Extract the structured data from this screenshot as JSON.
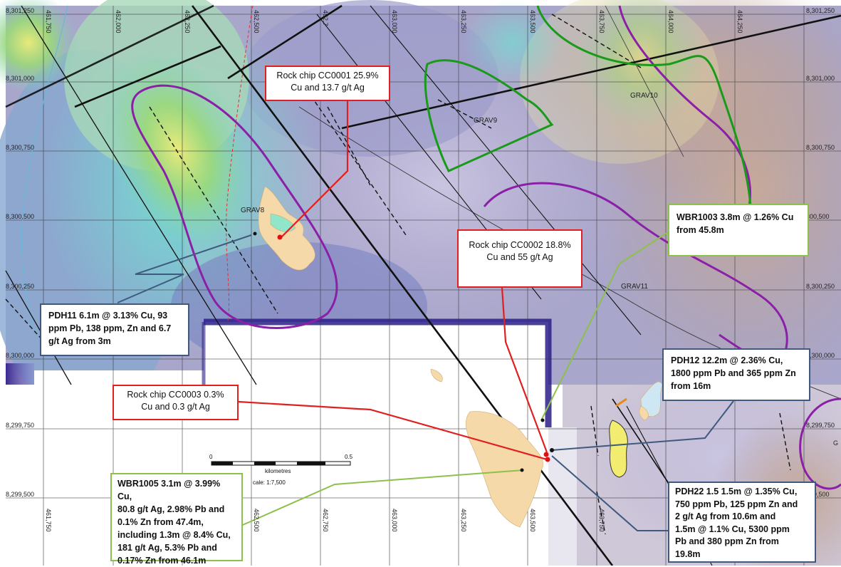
{
  "colors": {
    "background": "#ffffff",
    "grid": "#3a3a3a",
    "fault": "#111111",
    "anomaly_outline": "#8b1fa8",
    "grav_outline": "#1a9a1a",
    "callout_red": "#e02020",
    "callout_blue": "#3f5a7e",
    "callout_green": "#8cc14b",
    "outcrop": "#f6d9a8",
    "sample": "#e01010"
  },
  "grid": {
    "eastings": [
      "461,750",
      "462,000",
      "462,250",
      "462,500",
      "462,750",
      "463,000",
      "463,250",
      "463,500",
      "463,750",
      "464,000",
      "464,250"
    ],
    "northings_left": [
      "8,301,250",
      "8,301,000",
      "8,300,750",
      "8,300,500",
      "8,300,250",
      "8,300,000",
      "8,299,750",
      "8,299,500"
    ],
    "northings_right": [
      "8,301,250",
      "8,301,000",
      "8,300,750",
      "300,500",
      "8,300,250",
      "8,300,000",
      "8,299,750",
      "299,500"
    ],
    "top_eastings_partial": [
      "461,750",
      "462,000",
      "462,250",
      "462,500",
      "462,7",
      "463,000",
      "463,250",
      "463,500",
      "463,750",
      "464,000",
      "464,250"
    ]
  },
  "targets": [
    "GRAV8",
    "GRAV9",
    "GRAV10",
    "GRAV11"
  ],
  "scale_bar": {
    "start": "0",
    "end": "0.5",
    "unit": "kilometres",
    "scale": "cale: 1:7,500"
  },
  "edge_letter": "G",
  "callouts": {
    "cc0001": {
      "lines": [
        "Rock chip CC0001  25.9%",
        "Cu and 13.7 g/t Ag"
      ]
    },
    "cc0002": {
      "lines": [
        "Rock chip CC0002  18.8%",
        "Cu and 55 g/t Ag"
      ]
    },
    "cc0003": {
      "lines": [
        "Rock chip CC0003  0.3%",
        "Cu and 0.3 g/t Ag"
      ]
    },
    "wbr1003": {
      "lines": [
        "WBR1003  3.8m @ 1.26% Cu",
        "from 45.8m"
      ]
    },
    "pdh11": {
      "lines": [
        "PDH11  6.1m @ 3.13% Cu, 93",
        "ppm Pb, 138 ppm, Zn and 6.7",
        "g/t Ag from 3m"
      ]
    },
    "pdh12": {
      "lines": [
        "PDH12  12.2m @ 2.36% Cu,",
        "1800 ppm Pb and 365 ppm Zn",
        "from 16m"
      ]
    },
    "wbr1005": {
      "lines": [
        "WBR1005  3.1m @ 3.99% Cu,",
        "80.8 g/t Ag, 2.98% Pb and",
        "0.1% Zn from 47.4m,",
        "including 1.3m @ 8.4% Cu,",
        "181 g/t Ag, 5.3% Pb and",
        "0.17% Zn from 46.1m"
      ]
    },
    "pdh22": {
      "lines": [
        "PDH22  1.5 1.5m @ 1.35% Cu,",
        "750 ppm Pb, 125 ppm Zn and",
        "2 g/t Ag from 10.6m  and",
        "1.5m @ 1.1% Cu, 5300 ppm",
        "Pb and 380 ppm Zn from",
        "19.8m"
      ]
    }
  }
}
